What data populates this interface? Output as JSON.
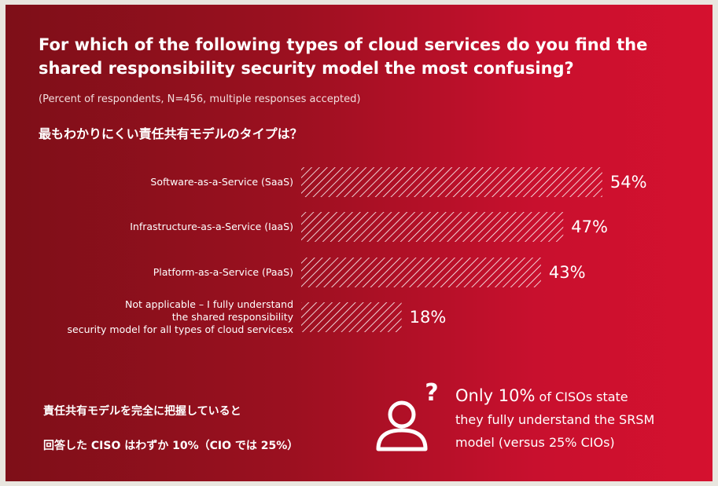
{
  "chart_data": {
    "type": "bar",
    "orientation": "horizontal",
    "title": "For which of the following types of cloud services do you find the shared responsibility security model the most confusing?",
    "subtitle": "(Percent of respondents, N=456, multiple responses accepted)",
    "categories": [
      [
        "Software-as-a-Service (SaaS)"
      ],
      [
        "Infrastructure-as-a-Service (IaaS)"
      ],
      [
        "Platform-as-a-Service (PaaS)"
      ],
      [
        "Not applicable – I fully understand",
        "the shared responsibility",
        "security model for all types of cloud servicesx"
      ]
    ],
    "values": [
      54,
      47,
      43,
      18
    ],
    "value_labels": [
      "54%",
      "47%",
      "43%",
      "18%"
    ],
    "xlim": [
      0,
      100
    ],
    "grid": false,
    "legend": "none",
    "bar_fill": "diagonal-hatch"
  },
  "jp_heading": "最もわかりにくい責任共有モデルのタイプは？",
  "jp_note": {
    "line1": "責任共有モデルを完全に把握していると",
    "line2": "回答した CISO はわずか 10%（CIO では 25%）"
  },
  "callout": {
    "highlight": "Only 10%",
    "rest_line1": " of CISOs state",
    "line2": "they fully understand the SRSM",
    "line3": "model (versus 25% CIOs)",
    "icon": "person-question-icon"
  },
  "colors": {
    "background_dark": "#7e0f18",
    "background_light": "#d5112f",
    "text": "#ffffff"
  }
}
